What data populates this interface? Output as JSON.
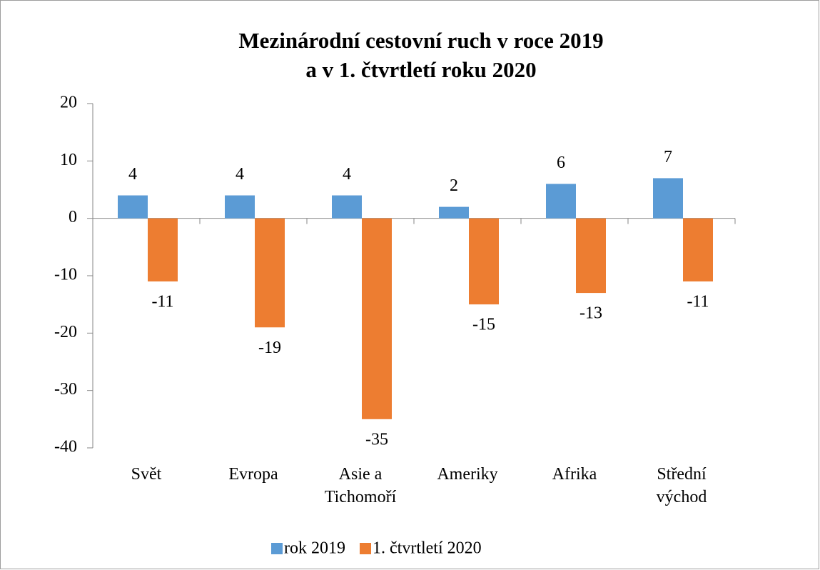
{
  "chart_data": {
    "type": "bar",
    "title": [
      "Mezinárodní cestovní ruch v roce 2019",
      "a v 1. čtvrtletí roku 2020"
    ],
    "categories": [
      "Svět",
      "Evropa",
      "Asie a Tichomoří",
      "Ameriky",
      "Afrika",
      "Střední východ"
    ],
    "series": [
      {
        "name": "rok 2019",
        "color": "#5b9bd5",
        "values": [
          4,
          4,
          4,
          2,
          6,
          7
        ]
      },
      {
        "name": "1. čtvrtletí 2020",
        "color": "#ed7d31",
        "values": [
          -11,
          -19,
          -35,
          -15,
          -13,
          -11
        ]
      }
    ],
    "ylim": [
      -40,
      20
    ],
    "yticks": [
      -40,
      -30,
      -20,
      -10,
      0,
      10,
      20
    ],
    "grid": false,
    "legend": "bottom"
  }
}
